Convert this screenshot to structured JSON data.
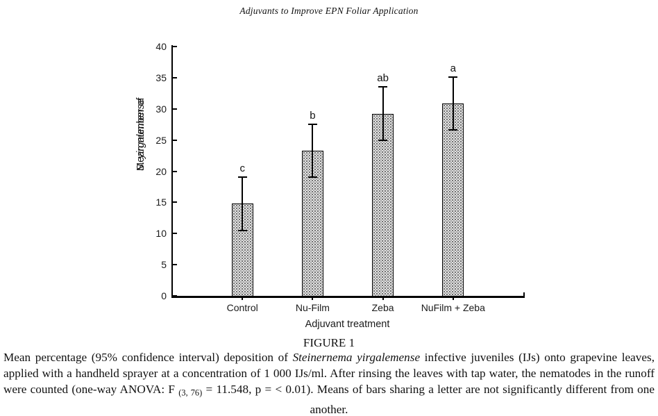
{
  "header": {
    "title": "Adjuvants to Improve EPN Foliar Application"
  },
  "figure": {
    "label": "FIGURE 1"
  },
  "caption": {
    "segments": [
      {
        "text": "Mean percentage (95% confidence interval) deposition of ",
        "style": "normal"
      },
      {
        "text": "Steinernema yirgalemense",
        "style": "italic"
      },
      {
        "text": " infective juveniles (IJs) onto grapevine leaves, applied with a handheld sprayer at a concentration of 1 000 IJs/ml. After rinsing the leaves with tap water, the nematodes in the runoff were counted (one-way ANOVA: F ",
        "style": "normal"
      },
      {
        "text": "(3, 76)",
        "style": "sub"
      },
      {
        "text": " = 11.548, p = < 0.01). Means of bars sharing a letter are not significantly different from one another.",
        "style": "normal"
      }
    ]
  },
  "chart_data": {
    "type": "bar",
    "title": "",
    "categories": [
      "Control",
      "Nu-Film",
      "Zeba",
      "NuFilm + Zeba"
    ],
    "values": [
      14.8,
      23.3,
      29.2,
      30.9
    ],
    "ci_low": [
      10.5,
      19.0,
      25.0,
      26.6
    ],
    "ci_high": [
      19.0,
      27.5,
      33.5,
      35.1
    ],
    "letters": [
      "c",
      "b",
      "ab",
      "a"
    ],
    "xlabel": "Adjuvant treatment",
    "ylabel_segments": [
      {
        "text": "Mean number of ",
        "italic": false
      },
      {
        "text": "S. yirgalemense",
        "italic": true
      }
    ],
    "ylim": [
      0,
      40
    ],
    "yticks": [
      0,
      5,
      10,
      15,
      20,
      25,
      30,
      35,
      40
    ],
    "grid": false,
    "legend": "none",
    "bar_fill": "#dcdcdc",
    "axis_color": "#000000"
  }
}
